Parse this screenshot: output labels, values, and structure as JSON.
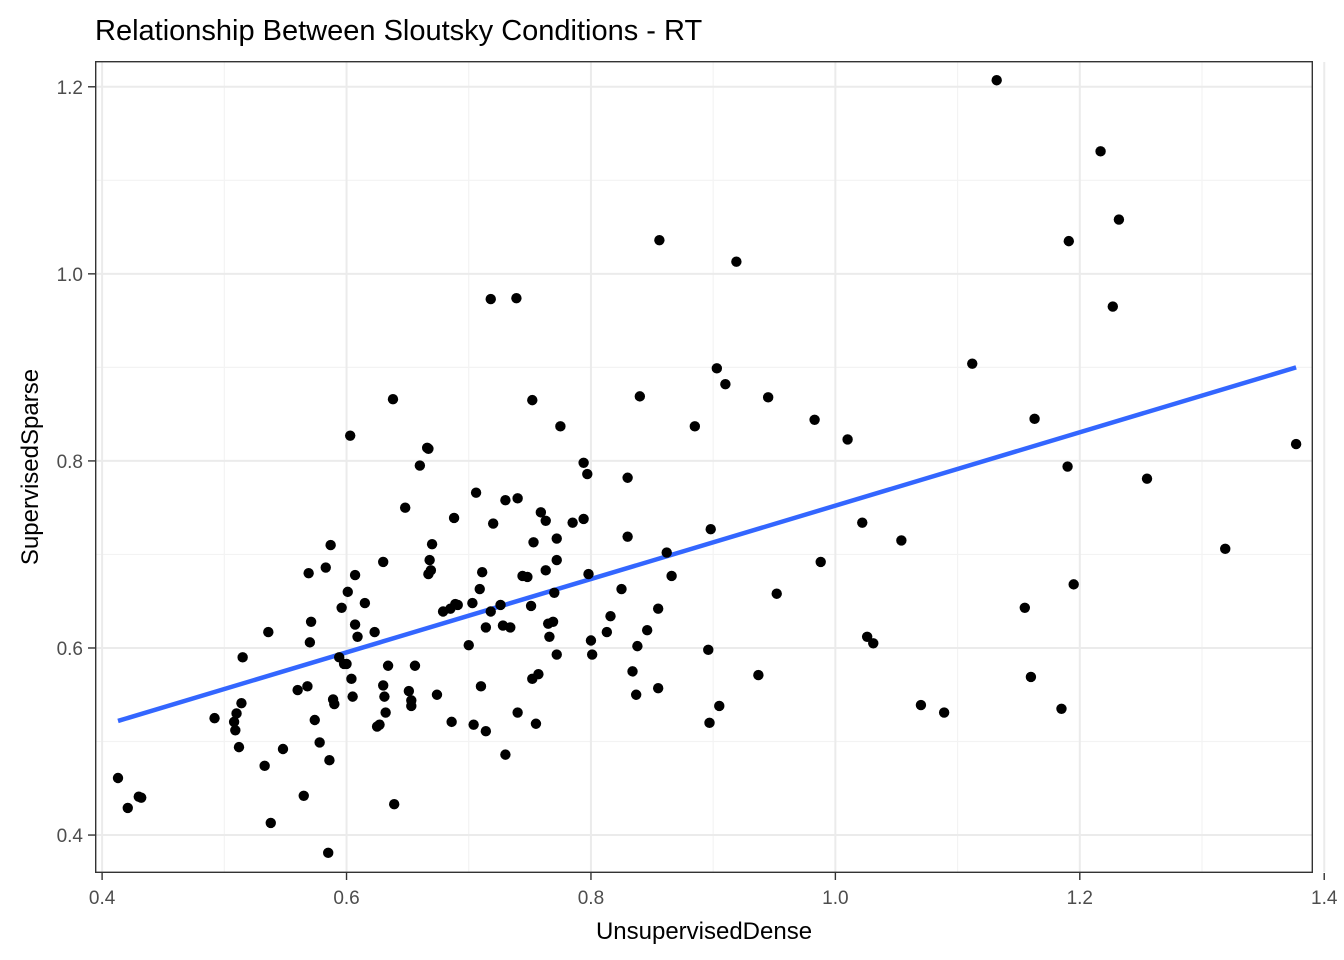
{
  "chart_data": {
    "type": "scatter",
    "title": "Relationship Between Sloutsky Conditions - RT",
    "xlabel": "UnsupervisedDense",
    "ylabel": "SupervisedSparse",
    "xlim": [
      0.395,
      1.39
    ],
    "ylim": [
      0.3605,
      1.2265
    ],
    "x_ticks": [
      0.4,
      0.6,
      0.8,
      1.0,
      1.2,
      1.4
    ],
    "x_tick_labels": [
      "0.4",
      "0.6",
      "0.8",
      "1.0",
      "1.2",
      "1.4"
    ],
    "y_ticks": [
      0.4,
      0.6,
      0.8,
      1.0,
      1.2
    ],
    "y_tick_labels": [
      "0.4",
      "0.6",
      "0.8",
      "1.0",
      "1.2"
    ],
    "grid": true,
    "legend": "none",
    "colors": {
      "points": "#000000",
      "fit_line": "#3366ff",
      "grid": "#ebebeb",
      "border": "#333333"
    },
    "fit_line": {
      "x": [
        0.413,
        1.377
      ],
      "y": [
        0.522,
        0.9
      ]
    },
    "points": [
      [
        0.413,
        0.461
      ],
      [
        0.421,
        0.429
      ],
      [
        0.43,
        0.441
      ],
      [
        0.432,
        0.44
      ],
      [
        0.492,
        0.525
      ],
      [
        0.508,
        0.521
      ],
      [
        0.509,
        0.512
      ],
      [
        0.51,
        0.53
      ],
      [
        0.512,
        0.494
      ],
      [
        0.514,
        0.541
      ],
      [
        0.515,
        0.59
      ],
      [
        0.533,
        0.474
      ],
      [
        0.536,
        0.617
      ],
      [
        0.538,
        0.413
      ],
      [
        0.548,
        0.492
      ],
      [
        0.56,
        0.555
      ],
      [
        0.565,
        0.442
      ],
      [
        0.568,
        0.559
      ],
      [
        0.569,
        0.68
      ],
      [
        0.57,
        0.606
      ],
      [
        0.571,
        0.628
      ],
      [
        0.574,
        0.523
      ],
      [
        0.578,
        0.499
      ],
      [
        0.583,
        0.686
      ],
      [
        0.585,
        0.381
      ],
      [
        0.586,
        0.48
      ],
      [
        0.587,
        0.71
      ],
      [
        0.589,
        0.545
      ],
      [
        0.59,
        0.54
      ],
      [
        0.594,
        0.59
      ],
      [
        0.596,
        0.643
      ],
      [
        0.598,
        0.583
      ],
      [
        0.6,
        0.583
      ],
      [
        0.601,
        0.66
      ],
      [
        0.603,
        0.827
      ],
      [
        0.604,
        0.567
      ],
      [
        0.605,
        0.548
      ],
      [
        0.607,
        0.625
      ],
      [
        0.607,
        0.678
      ],
      [
        0.609,
        0.612
      ],
      [
        0.615,
        0.648
      ],
      [
        0.623,
        0.617
      ],
      [
        0.625,
        0.516
      ],
      [
        0.627,
        0.518
      ],
      [
        0.63,
        0.692
      ],
      [
        0.63,
        0.56
      ],
      [
        0.631,
        0.548
      ],
      [
        0.632,
        0.531
      ],
      [
        0.634,
        0.581
      ],
      [
        0.638,
        0.866
      ],
      [
        0.639,
        0.433
      ],
      [
        0.648,
        0.75
      ],
      [
        0.651,
        0.554
      ],
      [
        0.653,
        0.544
      ],
      [
        0.653,
        0.538
      ],
      [
        0.656,
        0.581
      ],
      [
        0.66,
        0.795
      ],
      [
        0.666,
        0.814
      ],
      [
        0.667,
        0.813
      ],
      [
        0.667,
        0.679
      ],
      [
        0.668,
        0.694
      ],
      [
        0.669,
        0.683
      ],
      [
        0.67,
        0.711
      ],
      [
        0.674,
        0.55
      ],
      [
        0.679,
        0.639
      ],
      [
        0.685,
        0.642
      ],
      [
        0.686,
        0.521
      ],
      [
        0.688,
        0.739
      ],
      [
        0.689,
        0.647
      ],
      [
        0.691,
        0.646
      ],
      [
        0.7,
        0.603
      ],
      [
        0.703,
        0.648
      ],
      [
        0.704,
        0.518
      ],
      [
        0.706,
        0.766
      ],
      [
        0.709,
        0.663
      ],
      [
        0.71,
        0.559
      ],
      [
        0.711,
        0.681
      ],
      [
        0.714,
        0.511
      ],
      [
        0.714,
        0.622
      ],
      [
        0.718,
        0.639
      ],
      [
        0.718,
        0.973
      ],
      [
        0.72,
        0.733
      ],
      [
        0.726,
        0.646
      ],
      [
        0.728,
        0.624
      ],
      [
        0.73,
        0.486
      ],
      [
        0.73,
        0.758
      ],
      [
        0.734,
        0.622
      ],
      [
        0.739,
        0.974
      ],
      [
        0.74,
        0.76
      ],
      [
        0.74,
        0.531
      ],
      [
        0.744,
        0.677
      ],
      [
        0.748,
        0.676
      ],
      [
        0.751,
        0.645
      ],
      [
        0.752,
        0.567
      ],
      [
        0.752,
        0.865
      ],
      [
        0.753,
        0.713
      ],
      [
        0.755,
        0.519
      ],
      [
        0.757,
        0.572
      ],
      [
        0.759,
        0.745
      ],
      [
        0.763,
        0.683
      ],
      [
        0.763,
        0.736
      ],
      [
        0.765,
        0.626
      ],
      [
        0.766,
        0.612
      ],
      [
        0.769,
        0.628
      ],
      [
        0.77,
        0.659
      ],
      [
        0.772,
        0.593
      ],
      [
        0.772,
        0.694
      ],
      [
        0.772,
        0.717
      ],
      [
        0.775,
        0.837
      ],
      [
        0.785,
        0.734
      ],
      [
        0.794,
        0.738
      ],
      [
        0.794,
        0.798
      ],
      [
        0.797,
        0.786
      ],
      [
        0.798,
        0.679
      ],
      [
        0.8,
        0.608
      ],
      [
        0.801,
        0.593
      ],
      [
        0.813,
        0.617
      ],
      [
        0.816,
        0.634
      ],
      [
        0.825,
        0.663
      ],
      [
        0.83,
        0.719
      ],
      [
        0.83,
        0.782
      ],
      [
        0.834,
        0.575
      ],
      [
        0.837,
        0.55
      ],
      [
        0.838,
        0.602
      ],
      [
        0.84,
        0.869
      ],
      [
        0.846,
        0.619
      ],
      [
        0.855,
        0.642
      ],
      [
        0.855,
        0.557
      ],
      [
        0.856,
        1.036
      ],
      [
        0.862,
        0.702
      ],
      [
        0.866,
        0.677
      ],
      [
        0.885,
        0.837
      ],
      [
        0.896,
        0.598
      ],
      [
        0.897,
        0.52
      ],
      [
        0.898,
        0.727
      ],
      [
        0.903,
        0.899
      ],
      [
        0.905,
        0.538
      ],
      [
        0.91,
        0.882
      ],
      [
        0.919,
        1.013
      ],
      [
        0.937,
        0.571
      ],
      [
        0.945,
        0.868
      ],
      [
        0.952,
        0.658
      ],
      [
        0.983,
        0.844
      ],
      [
        0.988,
        0.692
      ],
      [
        1.01,
        0.823
      ],
      [
        1.022,
        0.734
      ],
      [
        1.026,
        0.612
      ],
      [
        1.031,
        0.605
      ],
      [
        1.054,
        0.715
      ],
      [
        1.07,
        0.539
      ],
      [
        1.089,
        0.531
      ],
      [
        1.112,
        0.904
      ],
      [
        1.132,
        1.207
      ],
      [
        1.155,
        0.643
      ],
      [
        1.16,
        0.569
      ],
      [
        1.163,
        0.845
      ],
      [
        1.185,
        0.535
      ],
      [
        1.19,
        0.794
      ],
      [
        1.191,
        1.035
      ],
      [
        1.195,
        0.668
      ],
      [
        1.217,
        1.131
      ],
      [
        1.227,
        0.965
      ],
      [
        1.232,
        1.058
      ],
      [
        1.255,
        0.781
      ],
      [
        1.319,
        0.706
      ],
      [
        1.377,
        0.818
      ]
    ]
  }
}
